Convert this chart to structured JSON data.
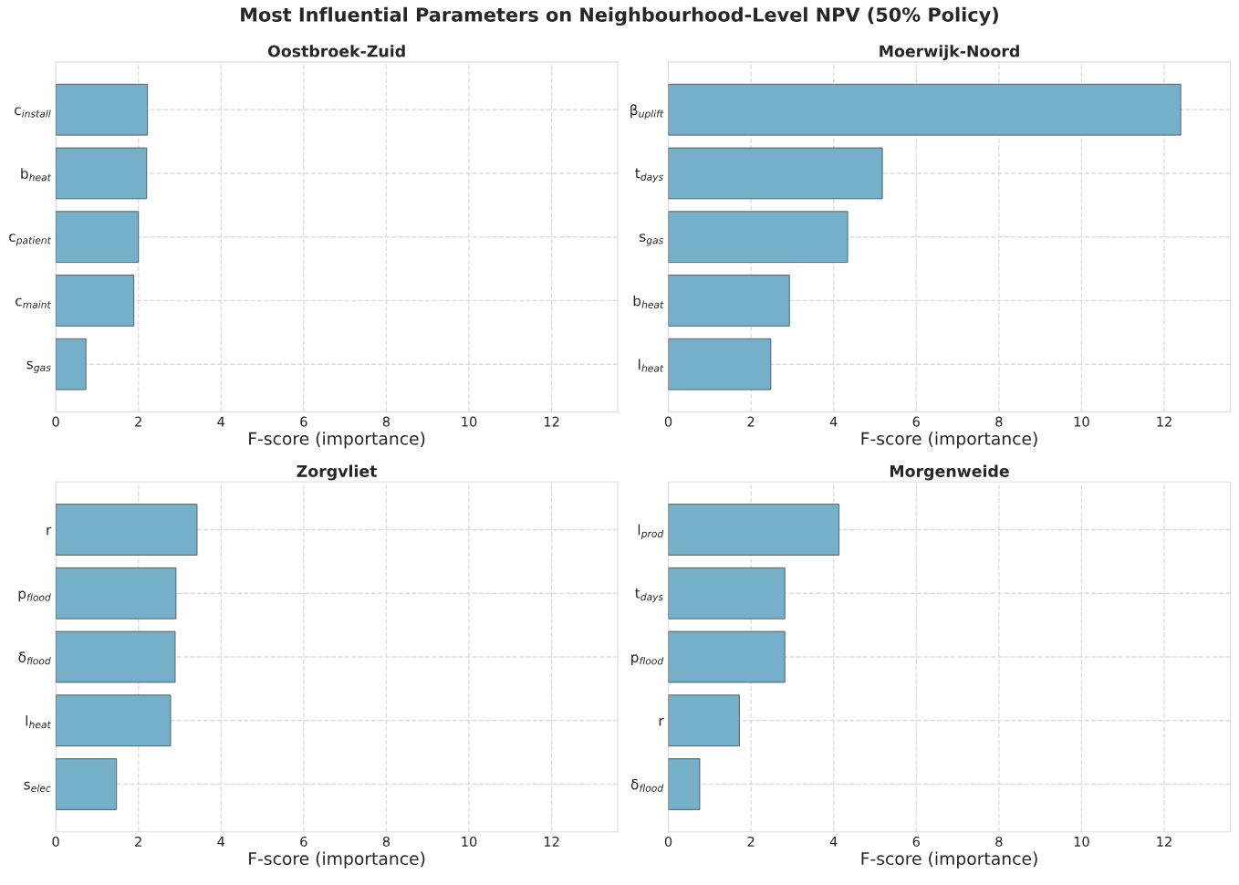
{
  "chart_data": [
    {
      "type": "bar",
      "orientation": "horizontal",
      "title": "Oostbroek-Zuid",
      "xlabel": "F-score (importance)",
      "categories": [
        "c$_{install}$",
        "b$_{heat}$",
        "c$_{patient}$",
        "c$_{maint}$",
        "s$_{gas}$"
      ],
      "values": [
        2.22,
        2.2,
        2.0,
        1.89,
        0.73
      ],
      "color": "#76afca",
      "xlim": [
        0,
        13.6
      ],
      "xticks": [
        0,
        2,
        4,
        6,
        8,
        10,
        12
      ],
      "grid": true,
      "annotations": [
        "Most Influential Parameters on Neighbourhood-Level NPV (50% Policy)"
      ]
    },
    {
      "type": "bar",
      "orientation": "horizontal",
      "title": "Moerwijk-Noord",
      "xlabel": "F-score (importance)",
      "categories": [
        "β$_{uplift}$",
        "t$_{days}$",
        "s$_{gas}$",
        "b$_{heat}$",
        "l$_{heat}$"
      ],
      "values": [
        12.4,
        5.18,
        4.34,
        2.93,
        2.48
      ],
      "color": "#76afca",
      "xlim": [
        0,
        13.6
      ],
      "xticks": [
        0,
        2,
        4,
        6,
        8,
        10,
        12
      ],
      "grid": true
    },
    {
      "type": "bar",
      "orientation": "horizontal",
      "title": "Zorgvliet",
      "xlabel": "F-score (importance)",
      "categories": [
        "r",
        "p$_{flood}$",
        "δ$_{flood}$",
        "l$_{heat}$",
        "s$_{elec}$"
      ],
      "values": [
        3.42,
        2.91,
        2.89,
        2.78,
        1.47
      ],
      "color": "#76afca",
      "xlim": [
        0,
        13.6
      ],
      "xticks": [
        0,
        2,
        4,
        6,
        8,
        10,
        12
      ],
      "grid": true
    },
    {
      "type": "bar",
      "orientation": "horizontal",
      "title": "Morgenweide",
      "xlabel": "F-score (importance)",
      "categories": [
        "l$_{prod}$",
        "t$_{days}$",
        "p$_{flood}$",
        "r",
        "δ$_{flood}$"
      ],
      "values": [
        4.13,
        2.82,
        2.82,
        1.72,
        0.76
      ],
      "color": "#76afca",
      "xlim": [
        0,
        13.6
      ],
      "xticks": [
        0,
        2,
        4,
        6,
        8,
        10,
        12
      ],
      "grid": true
    }
  ]
}
